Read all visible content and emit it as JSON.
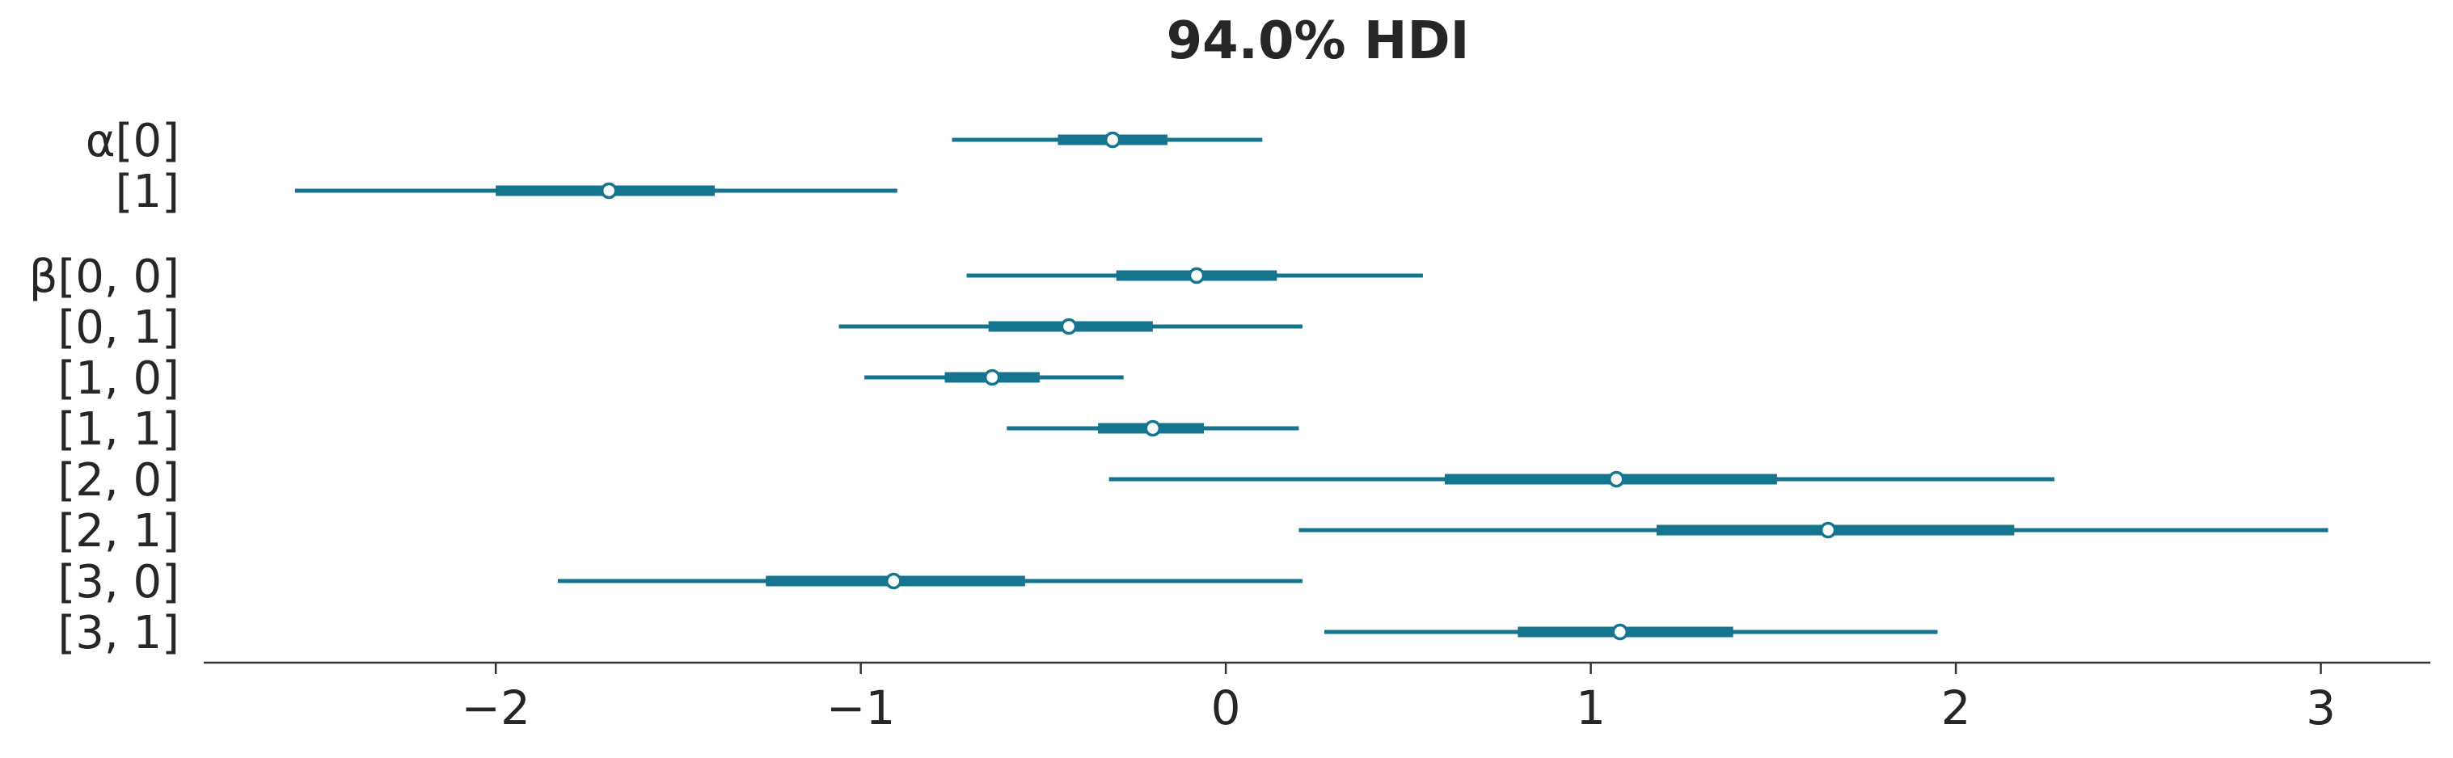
{
  "chart_data": {
    "type": "forest",
    "title": "94.0% HDI",
    "xlabel": "",
    "ylabel": "",
    "xlim": [
      -2.8,
      3.3
    ],
    "xticks": [
      -2,
      -1,
      0,
      1,
      2,
      3
    ],
    "xtick_labels": [
      "−2",
      "−1",
      "0",
      "1",
      "2",
      "3"
    ],
    "grid": false,
    "color": "#15758f",
    "groups": [
      {
        "name": "α",
        "rows": [
          {
            "label": "α[0]",
            "hdi_94": [
              -0.75,
              0.1
            ],
            "iqr": [
              -0.46,
              -0.16
            ],
            "median": -0.31
          },
          {
            "label": "[1]",
            "hdi_94": [
              -2.55,
              -0.9
            ],
            "iqr": [
              -2.0,
              -1.4
            ],
            "median": -1.69
          }
        ]
      },
      {
        "name": "β",
        "rows": [
          {
            "label": "β[0, 0]",
            "hdi_94": [
              -0.71,
              0.54
            ],
            "iqr": [
              -0.3,
              0.14
            ],
            "median": -0.08
          },
          {
            "label": "[0, 1]",
            "hdi_94": [
              -1.06,
              0.21
            ],
            "iqr": [
              -0.65,
              -0.2
            ],
            "median": -0.43
          },
          {
            "label": "[1, 0]",
            "hdi_94": [
              -0.99,
              -0.28
            ],
            "iqr": [
              -0.77,
              -0.51
            ],
            "median": -0.64
          },
          {
            "label": "[1, 1]",
            "hdi_94": [
              -0.6,
              0.2
            ],
            "iqr": [
              -0.35,
              -0.06
            ],
            "median": -0.2
          },
          {
            "label": "[2, 0]",
            "hdi_94": [
              -0.32,
              2.27
            ],
            "iqr": [
              0.6,
              1.51
            ],
            "median": 1.07
          },
          {
            "label": "[2, 1]",
            "hdi_94": [
              0.2,
              3.02
            ],
            "iqr": [
              1.18,
              2.16
            ],
            "median": 1.65
          },
          {
            "label": "[3, 0]",
            "hdi_94": [
              -1.83,
              0.21
            ],
            "iqr": [
              -1.26,
              -0.55
            ],
            "median": -0.91
          },
          {
            "label": "[3, 1]",
            "hdi_94": [
              0.27,
              1.95
            ],
            "iqr": [
              0.8,
              1.39
            ],
            "median": 1.08
          }
        ]
      }
    ]
  }
}
